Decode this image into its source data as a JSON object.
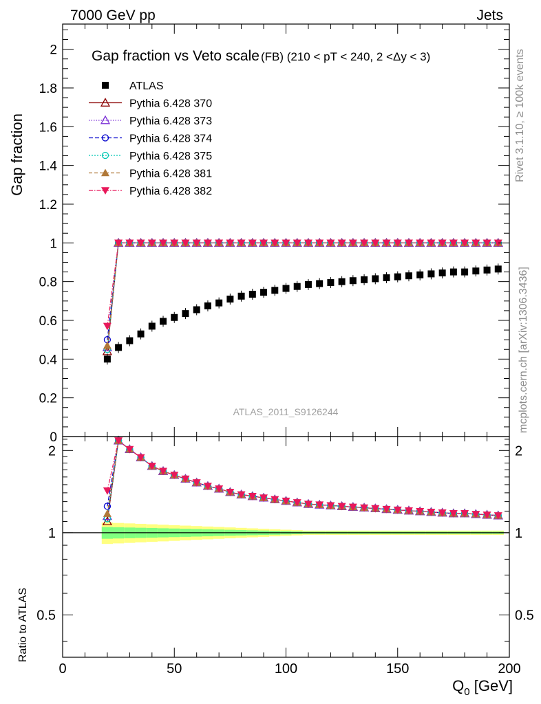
{
  "header": {
    "left": "7000 GeV pp",
    "right": "Jets"
  },
  "side_labels": {
    "rivet": "Rivet 3.1.10, ≥ 100k events",
    "mcplots": "mcplots.cern.ch [arXiv:1306.3436]"
  },
  "watermark": "ATLAS_2011_S9126244",
  "chart_data": {
    "type": "line",
    "title": "Gap fraction vs Veto scale",
    "subtitle": "(FB) (210 < pT < 240, 2 <Δy < 3)",
    "xlabel": "Q",
    "xlabel_sub": "0",
    "xlabel_unit": " [GeV]",
    "ylabel": "Gap fraction",
    "ratio_ylabel": "Ratio to ATLAS",
    "xlim": [
      0,
      200
    ],
    "ylim": [
      0,
      2.13
    ],
    "ratio_ylim": [
      0.35,
      2.25
    ],
    "x_ticks": [
      "0",
      "50",
      "100",
      "150",
      "200"
    ],
    "x_tick_values": [
      0,
      50,
      100,
      150,
      200
    ],
    "y_ticks": [
      "0",
      "0.2",
      "0.4",
      "0.6",
      "0.8",
      "1",
      "1.2",
      "1.4",
      "1.6",
      "1.8",
      "2"
    ],
    "y_tick_values": [
      0,
      0.2,
      0.4,
      0.6,
      0.8,
      1,
      1.2,
      1.4,
      1.6,
      1.8,
      2
    ],
    "ratio_ticks": [
      "0.5",
      "1",
      "2"
    ],
    "ratio_tick_values": [
      0.5,
      1,
      2
    ],
    "legend_position": "top-left",
    "x": [
      20,
      25,
      30,
      35,
      40,
      45,
      50,
      55,
      60,
      65,
      70,
      75,
      80,
      85,
      90,
      95,
      100,
      105,
      110,
      115,
      120,
      125,
      130,
      135,
      140,
      145,
      150,
      155,
      160,
      165,
      170,
      175,
      180,
      185,
      190,
      195
    ],
    "data": {
      "name": "ATLAS",
      "values": [
        0.4,
        0.46,
        0.495,
        0.53,
        0.57,
        0.595,
        0.615,
        0.635,
        0.655,
        0.675,
        0.69,
        0.71,
        0.725,
        0.735,
        0.745,
        0.755,
        0.765,
        0.775,
        0.785,
        0.79,
        0.795,
        0.8,
        0.805,
        0.81,
        0.815,
        0.82,
        0.825,
        0.83,
        0.835,
        0.84,
        0.845,
        0.85,
        0.85,
        0.855,
        0.86,
        0.865
      ]
    },
    "series": [
      {
        "name": "Pythia 6.428 370",
        "color": "#8b0000",
        "marker": "triangle-open",
        "dash": "",
        "first": 0.44
      },
      {
        "name": "Pythia 6.428 373",
        "color": "#7b2fd6",
        "marker": "triangle-open",
        "dash": "1.5,2",
        "first": 0.46
      },
      {
        "name": "Pythia 6.428 374",
        "color": "#0000cc",
        "marker": "circle-open",
        "dash": "6,3",
        "first": 0.5
      },
      {
        "name": "Pythia 6.428 375",
        "color": "#00c8b4",
        "marker": "circle-open",
        "dash": "2,2",
        "first": 0.45
      },
      {
        "name": "Pythia 6.428 381",
        "color": "#b07838",
        "marker": "triangle-filled",
        "dash": "5,3",
        "first": 0.47
      },
      {
        "name": "Pythia 6.428 382",
        "color": "#e8185a",
        "marker": "triangle-down-filled",
        "dash": "6,2,1.5,2",
        "first": 0.57
      }
    ],
    "mc_plateau": 1.0
  }
}
